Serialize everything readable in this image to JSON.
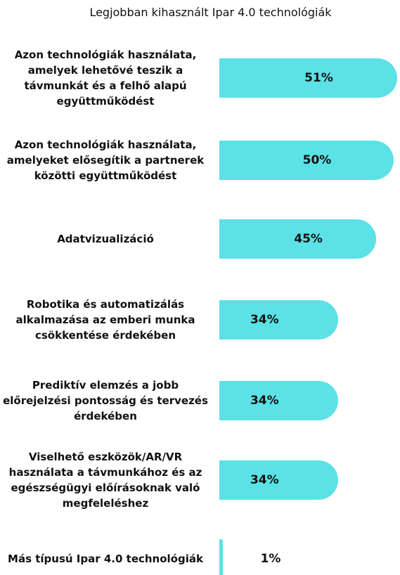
{
  "chart_data": {
    "type": "bar",
    "orientation": "horizontal",
    "title": "Legjobban kihasznált Ipar 4.0 technológiák",
    "categories": [
      "Azon technológiák használata, amelyek lehetővé teszik a távmunkát és a felhő alapú együttműködést",
      "Azon technológiák használata, amelyeket elősegítik a partnerek közötti együttműködést",
      "Adatvizualizáció",
      "Robotika és automatizálás alkalmazása az emberi munka csökkentése érdekében",
      "Prediktív elemzés a jobb előrejelzési pontosság és tervezés érdekében",
      "Viselhető eszközök/AR/VR használata a távmunkához és az egészségügyi előírásoknak való megfeleléshez",
      "Más típusú Ipar 4.0 technológiák"
    ],
    "values": [
      51,
      50,
      45,
      34,
      34,
      34,
      1
    ],
    "value_labels": [
      "51%",
      "50%",
      "45%",
      "34%",
      "34%",
      "34%",
      "1%"
    ],
    "color": "#5ce1e6"
  }
}
